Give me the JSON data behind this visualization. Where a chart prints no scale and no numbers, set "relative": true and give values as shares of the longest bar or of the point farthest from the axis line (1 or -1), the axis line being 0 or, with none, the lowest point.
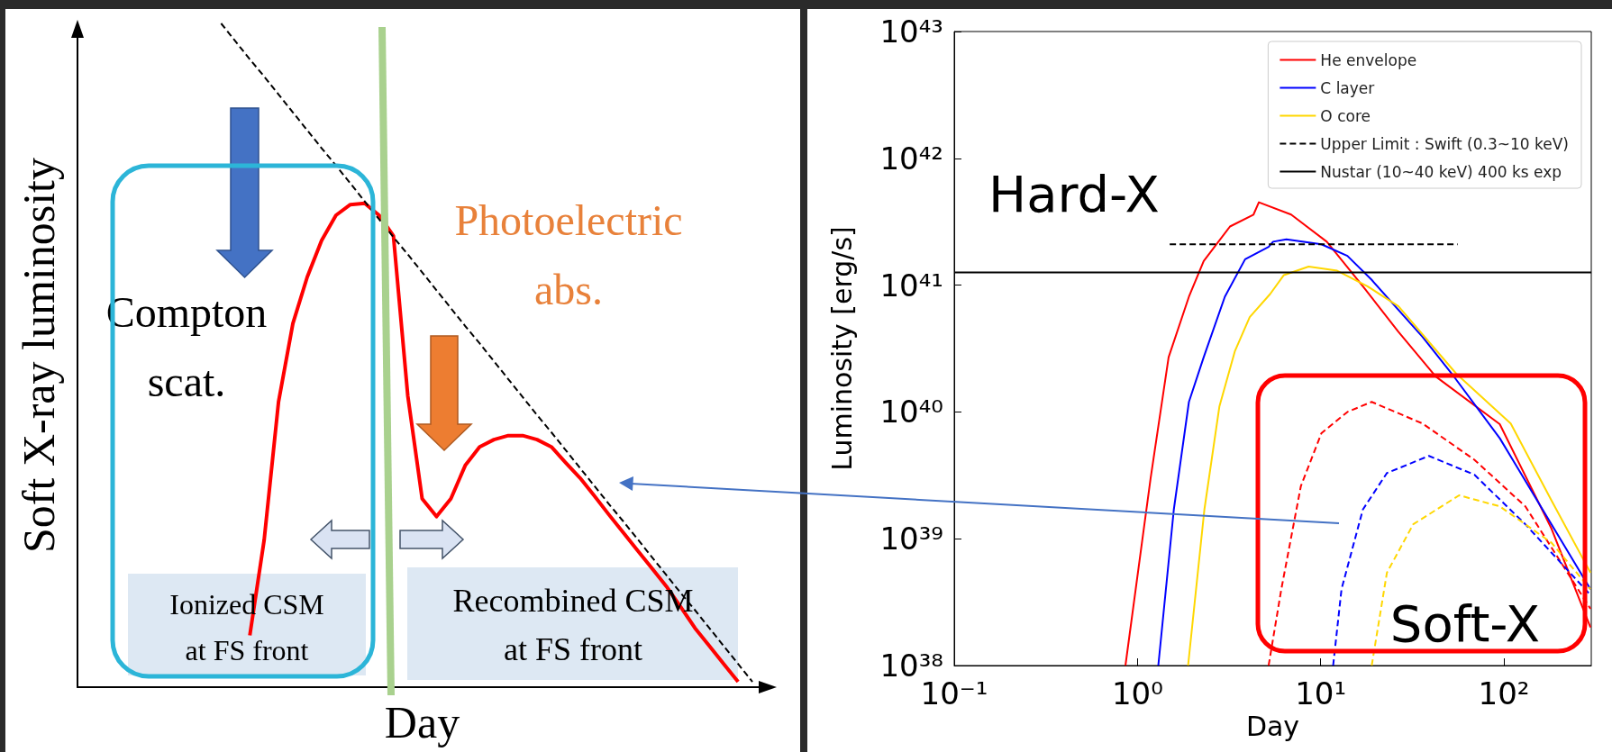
{
  "chart_data": [
    {
      "type": "line",
      "relative": true,
      "xlabel": "Day",
      "ylabel": "Soft X-ray luminosity",
      "tick_labels": false,
      "grid": false,
      "legend": false,
      "marker": "none",
      "categories": [
        null,
        null,
        null,
        null,
        null,
        null,
        null,
        null,
        null,
        null,
        null,
        null,
        null,
        null,
        null,
        null,
        null,
        null,
        null,
        null,
        null,
        null,
        null,
        null,
        null,
        null,
        null,
        null,
        null,
        null,
        null,
        null,
        null,
        null,
        null,
        null,
        null,
        null,
        null,
        null,
        null,
        null,
        null,
        null,
        null,
        null,
        null,
        null,
        null
      ],
      "series": [
        {
          "color": "#ff0000",
          "line_style": "solid",
          "values": [
            null,
            null,
            null,
            null,
            null,
            null,
            null,
            null,
            null,
            null,
            null,
            null,
            0.078,
            0.222,
            0.43,
            0.548,
            0.618,
            0.673,
            0.711,
            0.727,
            0.729,
            0.711,
            0.68,
            0.439,
            0.284,
            0.257,
            0.284,
            0.334,
            0.362,
            0.373,
            0.379,
            0.379,
            0.373,
            0.362,
            0.338,
            0.315,
            0.288,
            0.26,
            0.233,
            0.206,
            0.179,
            0.152,
            0.121,
            0.089,
            0.062,
            0.035,
            0.008,
            null,
            null
          ]
        },
        {
          "color": "#000000",
          "line_style": "dashed",
          "values": [
            null,
            null,
            null,
            null,
            null,
            null,
            null,
            null,
            null,
            null,
            1,
            0.973,
            0.946,
            0.92,
            0.893,
            0.866,
            0.839,
            0.812,
            0.786,
            0.759,
            0.732,
            0.705,
            0.678,
            0.652,
            0.625,
            0.598,
            0.571,
            0.544,
            0.518,
            0.491,
            0.464,
            0.437,
            0.41,
            0.384,
            0.357,
            0.33,
            0.303,
            0.276,
            0.25,
            0.223,
            0.196,
            0.169,
            0.142,
            0.116,
            0.089,
            0.062,
            0.035,
            0.008,
            null
          ]
        }
      ],
      "annotations": [
        "Compton\nscat.",
        "Photoelectric\nabs.",
        "Ionized CSM\nat FS front",
        "Recombined CSM\nat FS front"
      ]
    },
    {
      "type": "line",
      "xlabel": "Day",
      "ylabel": "Luminosity [erg/s]",
      "log": "xy",
      "grid": false,
      "legend": "top right",
      "marker": "none",
      "xlim": [
        0.1,
        300
      ],
      "ylim": [
        1e+38,
        1e+43
      ],
      "xticks": [
        {
          "value": 0.1,
          "label": "10⁻¹"
        },
        {
          "value": 1,
          "label": "10⁰"
        },
        {
          "value": 10,
          "label": "10¹"
        },
        {
          "value": 100,
          "label": "10²"
        }
      ],
      "yticks": [
        {
          "value": 1e+38,
          "label": "10³⁸"
        },
        {
          "value": 1e+39,
          "label": "10³⁹"
        },
        {
          "value": 1e+40,
          "label": "10⁴⁰"
        },
        {
          "value": 1e+41,
          "label": "10⁴¹"
        },
        {
          "value": 1e+42,
          "label": "10⁴²"
        },
        {
          "value": 1e+43,
          "label": "10⁴³"
        }
      ],
      "series": [
        {
          "name": "He envelope",
          "color": "#ff0000",
          "line_style": "solid",
          "x": [
            0.86,
            1.18,
            1.48,
            1.91,
            2.3,
            3.2,
            4.3,
            4.6,
            6.9,
            10.8,
            17,
            26.5,
            42.5,
            95,
            182,
            297
          ],
          "values": [
            1e+38,
            3e+39,
            2.7e+40,
            8.1e+40,
            1.55e+41,
            2.9e+41,
            3.6e+41,
            4.5e+41,
            3.6e+41,
            2.2e+41,
            9.8e+40,
            4.3e+40,
            1.9e+40,
            8e+39,
            1.2e+39,
            2e+38
          ]
        },
        {
          "name": "C layer",
          "color": "#0000ff",
          "line_style": "solid",
          "x": [
            1.3,
            1.58,
            1.91,
            2.3,
            3.0,
            3.87,
            5.2,
            5.5,
            6.5,
            10.1,
            14,
            19,
            36,
            52,
            95,
            182,
            297
          ],
          "values": [
            1e+38,
            1.7e+39,
            1.2e+40,
            2.7e+40,
            8.1e+40,
            1.6e+41,
            2e+41,
            2.2e+41,
            2.3e+41,
            2.1e+41,
            1.7e+41,
            1.1e+41,
            3.9e+40,
            2e+40,
            6.2e+39,
            1.3e+39,
            4e+38
          ]
        },
        {
          "name": "O core",
          "color": "#ffd700",
          "line_style": "solid",
          "x": [
            1.89,
            2.32,
            2.8,
            3.4,
            4.1,
            5.3,
            6.3,
            8.6,
            12.3,
            18,
            26.6,
            55,
            109,
            182,
            297
          ],
          "values": [
            1e+38,
            1.7e+39,
            1.1e+40,
            3e+40,
            5.6e+40,
            8.5e+40,
            1.2e+41,
            1.4e+41,
            1.3e+41,
            9.8e+40,
            6.8e+40,
            2e+40,
            8.1e+39,
            2e+39,
            5.4e+38
          ]
        },
        {
          "name": "Upper Limit : Swift (0.3~10 keV)",
          "color": "#000000",
          "line_style": "dashed",
          "x": [
            1.5,
            56
          ],
          "values": [
            2.1e+41,
            2.1e+41
          ]
        },
        {
          "name": "Nustar (10~40 keV) 400 ks exp",
          "color": "#000000",
          "line_style": "solid",
          "x": [
            0.1,
            300
          ],
          "values": [
            1.26e+41,
            1.26e+41
          ]
        },
        {
          "color": "#ff0000",
          "line_style": "dashed",
          "x": [
            5.2,
            6.1,
            7.8,
            10.1,
            14,
            19,
            36,
            69,
            131,
            297
          ],
          "values": [
            1e+38,
            4e+38,
            2.6e+39,
            6.8e+39,
            1e+40,
            1.2e+40,
            8.1e+39,
            4.2e+39,
            1.8e+39,
            2.8e+38
          ]
        },
        {
          "color": "#0000ff",
          "line_style": "dashed",
          "x": [
            11.7,
            13,
            17,
            23,
            39,
            69,
            131,
            297
          ],
          "values": [
            1e+38,
            4e+38,
            1.7e+39,
            3.3e+39,
            4.5e+39,
            3.2e+39,
            1.3e+39,
            3.6e+38
          ]
        },
        {
          "color": "#ffd700",
          "line_style": "dashed",
          "x": [
            19,
            23,
            32,
            57,
            95,
            182,
            297
          ],
          "values": [
            1e+38,
            5.4e+38,
            1.3e+39,
            2.2e+39,
            1.8e+39,
            9.3e+38,
            4e+38
          ]
        }
      ],
      "annotations": [
        "Hard-X",
        "Soft-X"
      ]
    }
  ]
}
